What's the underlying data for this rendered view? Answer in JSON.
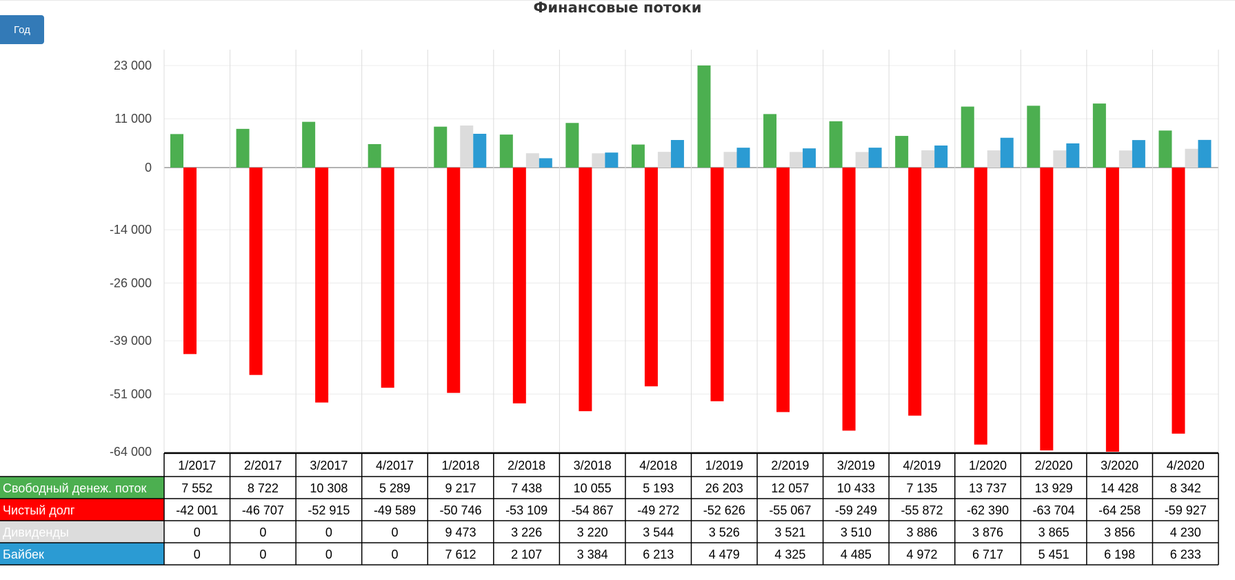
{
  "chart_data": {
    "type": "bar",
    "title": "Финансовые потоки",
    "categories": [
      "1/2017",
      "2/2017",
      "3/2017",
      "4/2017",
      "1/2018",
      "2/2018",
      "3/2018",
      "4/2018",
      "1/2019",
      "2/2019",
      "3/2019",
      "4/2019",
      "1/2020",
      "2/2020",
      "3/2020",
      "4/2020"
    ],
    "series": [
      {
        "name": "Свободный денеж. поток",
        "color": "#4caf50",
        "values": [
          7552,
          8722,
          10308,
          5289,
          9217,
          7438,
          10055,
          5193,
          26203,
          12057,
          10433,
          7135,
          13737,
          13929,
          14428,
          8342
        ],
        "labels": [
          "7 552",
          "8 722",
          "10 308",
          "5 289",
          "9 217",
          "7 438",
          "10 055",
          "5 193",
          "26 203",
          "12 057",
          "10 433",
          "7 135",
          "13 737",
          "13 929",
          "14 428",
          "8 342"
        ]
      },
      {
        "name": "Чистый долг",
        "color": "#ff0000",
        "values": [
          -42001,
          -46707,
          -52915,
          -49589,
          -50746,
          -53109,
          -54867,
          -49272,
          -52626,
          -55067,
          -59249,
          -55872,
          -62390,
          -63704,
          -64258,
          -59927
        ],
        "labels": [
          "-42 001",
          "-46 707",
          "-52 915",
          "-49 589",
          "-50 746",
          "-53 109",
          "-54 867",
          "-49 272",
          "-52 626",
          "-55 067",
          "-59 249",
          "-55 872",
          "-62 390",
          "-63 704",
          "-64 258",
          "-59 927"
        ]
      },
      {
        "name": "Дивиденды",
        "color": "#dcdcdc",
        "values": [
          0,
          0,
          0,
          0,
          9473,
          3226,
          3220,
          3544,
          3526,
          3521,
          3510,
          3886,
          3876,
          3865,
          3856,
          4230
        ],
        "labels": [
          "0",
          "0",
          "0",
          "0",
          "9 473",
          "3 226",
          "3 220",
          "3 544",
          "3 526",
          "3 521",
          "3 510",
          "3 886",
          "3 876",
          "3 865",
          "3 856",
          "4 230"
        ]
      },
      {
        "name": "Байбек",
        "color": "#2b9bd3",
        "values": [
          0,
          0,
          0,
          0,
          7612,
          2107,
          3384,
          6213,
          4479,
          4325,
          4485,
          4972,
          6717,
          5451,
          6198,
          6233
        ],
        "labels": [
          "0",
          "0",
          "0",
          "0",
          "7 612",
          "2 107",
          "3 384",
          "6 213",
          "4 479",
          "4 325",
          "4 485",
          "4 972",
          "6 717",
          "5 451",
          "6 198",
          "6 233"
        ]
      }
    ],
    "yticks": [
      23000,
      11000,
      0,
      -14000,
      -26000,
      -39000,
      -51000,
      -64000
    ],
    "ytick_labels": [
      "23 000",
      "11 000",
      "0",
      "-14 000",
      "-26 000",
      "-39 000",
      "-51 000",
      "-64 000"
    ],
    "ylim": [
      -64000,
      23000
    ],
    "grid": true,
    "legend": "data-table-below"
  },
  "controls": {
    "year_button": "Год"
  }
}
